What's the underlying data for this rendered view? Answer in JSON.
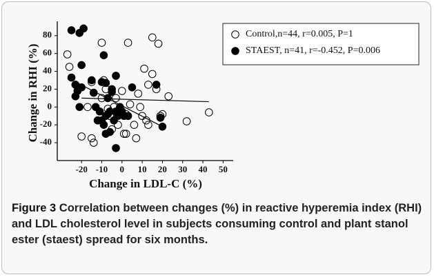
{
  "chart_data": {
    "type": "scatter",
    "xlabel": "Change in LDL-C (%)",
    "ylabel": "Change in RHI (%)",
    "xlim": [
      -32,
      55
    ],
    "ylim": [
      -60,
      96
    ],
    "xticks": [
      -20,
      -10,
      0,
      10,
      20,
      30,
      40,
      50
    ],
    "yticks": [
      -40,
      -20,
      0,
      20,
      40,
      60,
      80
    ],
    "series": [
      {
        "name": "Control,n=44, r=0.005, P=1",
        "marker": "open",
        "color": "#000000",
        "x": [
          -27,
          -26,
          -23,
          -20,
          -15,
          -14,
          -17,
          -15,
          -10,
          -9,
          -8,
          -12,
          -7,
          -5,
          -3,
          -2,
          0,
          1,
          2,
          3,
          4,
          6,
          8,
          10,
          11,
          12,
          13,
          13,
          15,
          15,
          17,
          18,
          19,
          20,
          23,
          32,
          43,
          -6,
          -4,
          -1,
          2,
          -10,
          9,
          7
        ],
        "values": [
          59,
          45,
          25,
          -33,
          -35,
          -40,
          0,
          28,
          72,
          30,
          20,
          -15,
          -2,
          -25,
          10,
          -20,
          18,
          -30,
          -30,
          72,
          3,
          -20,
          15,
          -10,
          43,
          -15,
          25,
          -20,
          37,
          78,
          20,
          71,
          -10,
          -8,
          12,
          -16,
          -6,
          -10,
          0,
          -7,
          -8,
          10,
          0,
          -35
        ],
        "fit": {
          "x": [
            -20,
            43
          ],
          "y": [
            10,
            6
          ]
        }
      },
      {
        "name": "STAEST, n=41, r=-0.452, P=0.006",
        "marker": "filled",
        "color": "#000000",
        "x": [
          -25,
          -21,
          -19,
          -20,
          -25,
          -23,
          -22,
          -23,
          -20,
          -21,
          -15,
          -14,
          -13,
          -10,
          -9,
          -8,
          -10,
          -8,
          -9,
          -6,
          -5,
          -5,
          -3,
          -3,
          -2,
          -4,
          -1,
          0,
          1,
          -3,
          -7,
          -11,
          -6,
          -8,
          3,
          5,
          17,
          19,
          20,
          -12,
          -7
        ],
        "values": [
          86,
          83,
          88,
          47,
          33,
          25,
          18,
          12,
          22,
          0,
          30,
          16,
          0,
          -15,
          -20,
          -10,
          28,
          27,
          58,
          -5,
          20,
          17,
          35,
          -5,
          -10,
          -15,
          0,
          -5,
          -10,
          -46,
          -8,
          -5,
          -28,
          -30,
          -10,
          22,
          25,
          -12,
          -22,
          -15,
          10
        ],
        "fit": {
          "x": [
            -22,
            20
          ],
          "y": [
            27,
            -22
          ]
        }
      }
    ]
  },
  "caption": {
    "label": "Figure 3",
    "text": "Correlation between changes (%) in reactive hyperemia index (RHI) and LDL cholesterol level in subjects consuming control and plant stanol ester (staest) spread for six months."
  }
}
